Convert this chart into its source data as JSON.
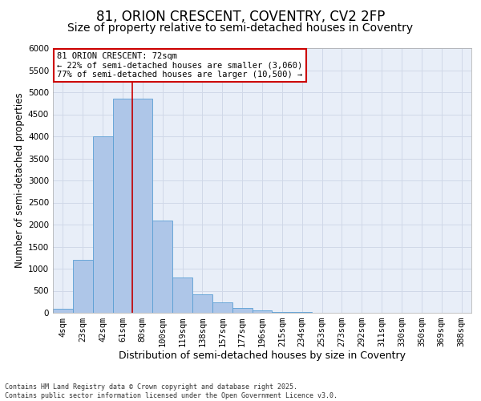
{
  "title1": "81, ORION CRESCENT, COVENTRY, CV2 2FP",
  "title2": "Size of property relative to semi-detached houses in Coventry",
  "xlabel": "Distribution of semi-detached houses by size in Coventry",
  "ylabel": "Number of semi-detached properties",
  "categories": [
    "4sqm",
    "23sqm",
    "42sqm",
    "61sqm",
    "80sqm",
    "100sqm",
    "119sqm",
    "138sqm",
    "157sqm",
    "177sqm",
    "196sqm",
    "215sqm",
    "234sqm",
    "253sqm",
    "273sqm",
    "292sqm",
    "311sqm",
    "330sqm",
    "350sqm",
    "369sqm",
    "388sqm"
  ],
  "values": [
    100,
    1200,
    4000,
    4850,
    4850,
    2100,
    800,
    420,
    240,
    110,
    60,
    20,
    10,
    5,
    2,
    1,
    1,
    1,
    1,
    1,
    1
  ],
  "bar_color": "#aec6e8",
  "bar_edgecolor": "#5a9fd4",
  "property_line_x": 3.5,
  "annotation_title": "81 ORION CRESCENT: 72sqm",
  "annotation_line1": "← 22% of semi-detached houses are smaller (3,060)",
  "annotation_line2": "77% of semi-detached houses are larger (10,500) →",
  "annotation_box_color": "#ffffff",
  "annotation_box_edgecolor": "#cc0000",
  "vline_color": "#cc0000",
  "grid_color": "#d0d8e8",
  "background_color": "#e8eef8",
  "ylim": [
    0,
    6000
  ],
  "yticks": [
    0,
    500,
    1000,
    1500,
    2000,
    2500,
    3000,
    3500,
    4000,
    4500,
    5000,
    5500,
    6000
  ],
  "footer1": "Contains HM Land Registry data © Crown copyright and database right 2025.",
  "footer2": "Contains public sector information licensed under the Open Government Licence v3.0.",
  "title_fontsize": 12,
  "subtitle_fontsize": 10,
  "tick_fontsize": 7.5,
  "xlabel_fontsize": 9,
  "ylabel_fontsize": 8.5
}
